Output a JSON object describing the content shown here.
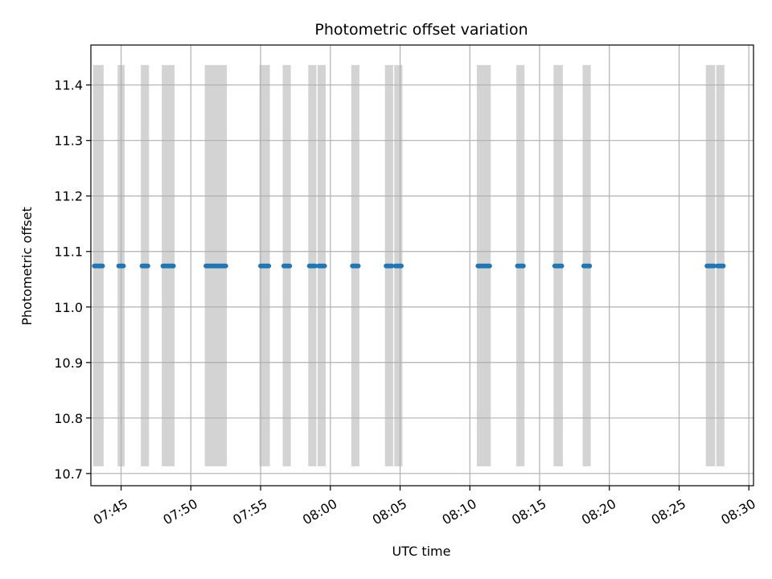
{
  "chart_data": {
    "type": "scatter",
    "title": "Photometric offset variation",
    "xlabel": "UTC time",
    "ylabel": "Photometric offset",
    "grid": true,
    "xlim": [
      "07:42:50",
      "08:30:20"
    ],
    "ylim": [
      10.678,
      11.472
    ],
    "x_ticks": [
      "07:45",
      "07:50",
      "07:55",
      "08:00",
      "08:05",
      "08:10",
      "08:15",
      "08:20",
      "08:25",
      "08:30"
    ],
    "y_ticks": [
      "10.7",
      "10.8",
      "10.9",
      "11.0",
      "11.1",
      "11.2",
      "11.3",
      "11.4"
    ],
    "bands": {
      "color": "#d3d3d3",
      "y_range": [
        10.713,
        11.436
      ],
      "x_intervals": [
        [
          "07:43:00",
          "07:43:45"
        ],
        [
          "07:44:45",
          "07:45:15"
        ],
        [
          "07:46:25",
          "07:47:00"
        ],
        [
          "07:47:55",
          "07:48:50"
        ],
        [
          "07:51:00",
          "07:52:35"
        ],
        [
          "07:54:55",
          "07:55:40"
        ],
        [
          "07:56:35",
          "07:57:10"
        ],
        [
          "07:58:25",
          "07:59:00"
        ],
        [
          "07:59:05",
          "07:59:40"
        ],
        [
          "08:01:30",
          "08:02:05"
        ],
        [
          "08:03:55",
          "08:04:30"
        ],
        [
          "08:04:35",
          "08:05:10"
        ],
        [
          "08:10:30",
          "08:11:30"
        ],
        [
          "08:13:20",
          "08:13:55"
        ],
        [
          "08:16:00",
          "08:16:40"
        ],
        [
          "08:18:05",
          "08:18:40"
        ],
        [
          "08:26:55",
          "08:27:35"
        ],
        [
          "08:27:40",
          "08:28:15"
        ]
      ]
    },
    "series": [
      {
        "color": "#1f77b4",
        "y": 11.074,
        "x_segments": [
          [
            "07:43:05",
            "07:43:40"
          ],
          [
            "07:44:50",
            "07:45:10"
          ],
          [
            "07:46:30",
            "07:46:55"
          ],
          [
            "07:48:00",
            "07:48:45"
          ],
          [
            "07:51:05",
            "07:52:30"
          ],
          [
            "07:55:00",
            "07:55:35"
          ],
          [
            "07:56:40",
            "07:57:05"
          ],
          [
            "07:58:30",
            "07:58:55"
          ],
          [
            "07:59:10",
            "07:59:35"
          ],
          [
            "08:01:35",
            "08:02:00"
          ],
          [
            "08:04:00",
            "08:04:25"
          ],
          [
            "08:04:40",
            "08:05:05"
          ],
          [
            "08:10:35",
            "08:11:25"
          ],
          [
            "08:13:25",
            "08:13:50"
          ],
          [
            "08:16:05",
            "08:16:35"
          ],
          [
            "08:18:10",
            "08:18:35"
          ],
          [
            "08:27:00",
            "08:27:30"
          ],
          [
            "08:27:45",
            "08:28:10"
          ]
        ]
      }
    ]
  }
}
